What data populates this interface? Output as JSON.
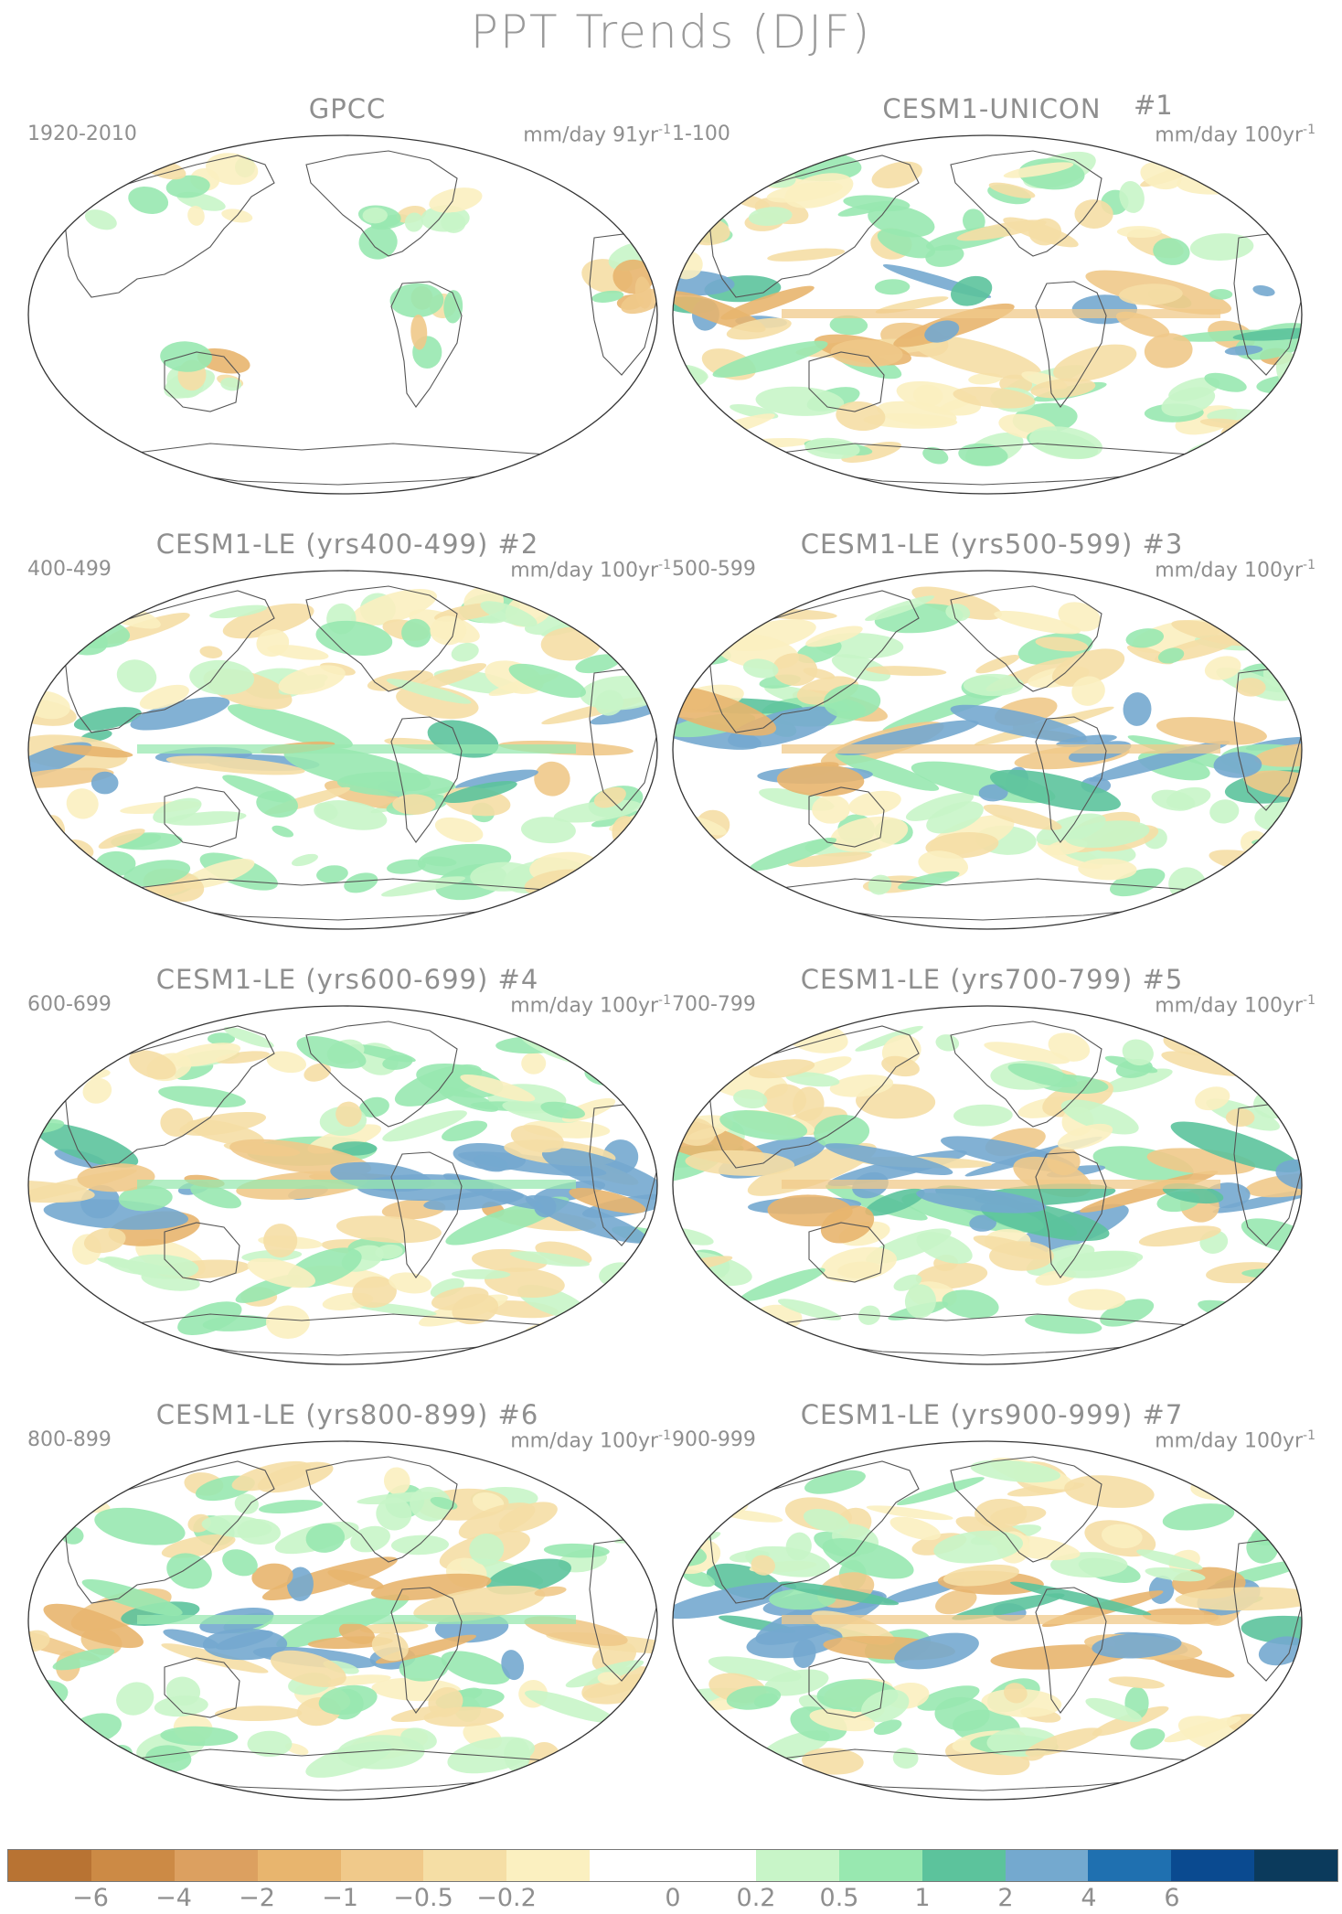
{
  "title": "PPT Trends (DJF)",
  "panels": [
    {
      "name": "GPCC",
      "number": "",
      "range": "1920-2010",
      "units": "mm/day 91yr",
      "units_exp": "-1",
      "variant": "obs"
    },
    {
      "name": "CESM1-UNICON",
      "number": "#1",
      "range": "1-100",
      "units": "mm/day 100yr",
      "units_exp": "-1",
      "variant": "m1"
    },
    {
      "name": "CESM1-LE (yrs400-499) #2",
      "number": "",
      "range": "400-499",
      "units": "mm/day 100yr",
      "units_exp": "-1",
      "variant": "m2"
    },
    {
      "name": "CESM1-LE (yrs500-599) #3",
      "number": "",
      "range": "500-599",
      "units": "mm/day 100yr",
      "units_exp": "-1",
      "variant": "m3"
    },
    {
      "name": "CESM1-LE (yrs600-699) #4",
      "number": "",
      "range": "600-699",
      "units": "mm/day 100yr",
      "units_exp": "-1",
      "variant": "m4"
    },
    {
      "name": "CESM1-LE (yrs700-799) #5",
      "number": "",
      "range": "700-799",
      "units": "mm/day 100yr",
      "units_exp": "-1",
      "variant": "m5"
    },
    {
      "name": "CESM1-LE (yrs800-899) #6",
      "number": "",
      "range": "800-899",
      "units": "mm/day 100yr",
      "units_exp": "-1",
      "variant": "m6"
    },
    {
      "name": "CESM1-LE (yrs900-999) #7",
      "number": "",
      "range": "900-999",
      "units": "mm/day 100yr",
      "units_exp": "-1",
      "variant": "m7"
    }
  ],
  "colorbar": {
    "colors": [
      "#b87333",
      "#cc8a45",
      "#dca060",
      "#e8b56e",
      "#f0c98a",
      "#f5dea5",
      "#fbf0c0",
      "#ffffff",
      "#ffffff",
      "#c8f5c8",
      "#98e8b0",
      "#5cc39c",
      "#74a9cf",
      "#1f70b0",
      "#0a4a90",
      "#0b3a5c"
    ],
    "labels": [
      "-6",
      "-4",
      "-2",
      "-1",
      "-0.5",
      "-0.2",
      "0",
      "0.2",
      "0.5",
      "1",
      "2",
      "4",
      "6"
    ]
  }
}
